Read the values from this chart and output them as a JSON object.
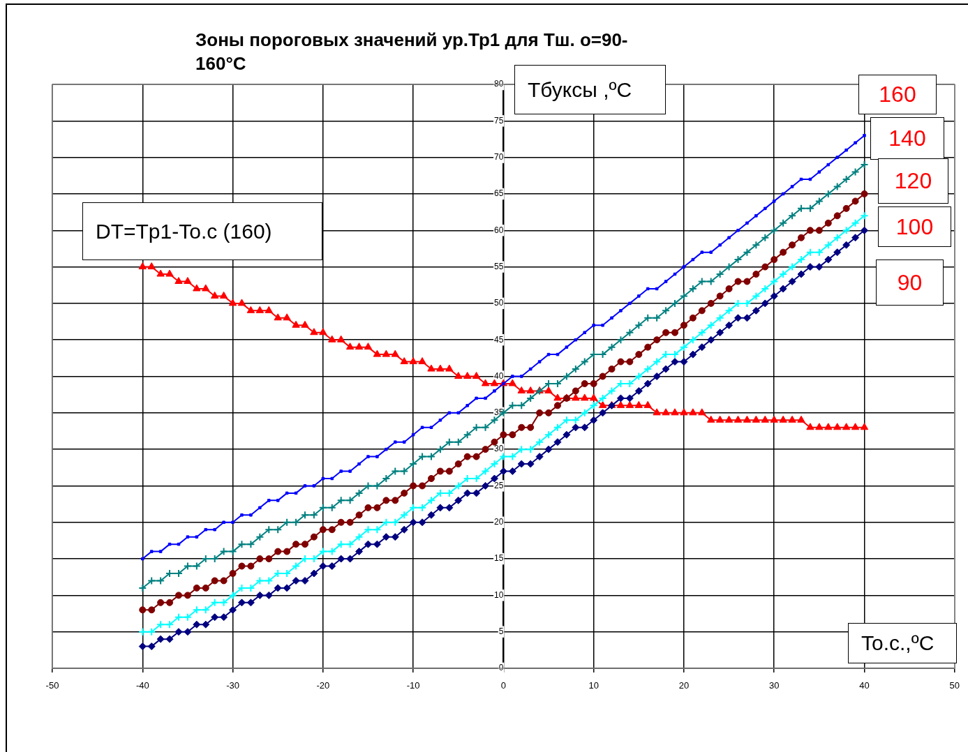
{
  "chart_data": {
    "type": "line",
    "title": "Зоны пороговых значений ур.Тр1 для Тш. о=90-160°С",
    "xlabel": "To.c.,ºC",
    "ylabel": "Тбуксы ,ºС",
    "annotations": [
      "DT=Tp1-To.c (160)"
    ],
    "x": [
      -40,
      -39,
      -38,
      -37,
      -36,
      -35,
      -34,
      -33,
      -32,
      -31,
      -30,
      -29,
      -28,
      -27,
      -26,
      -25,
      -24,
      -23,
      -22,
      -21,
      -20,
      -19,
      -18,
      -17,
      -16,
      -15,
      -14,
      -13,
      -12,
      -11,
      -10,
      -9,
      -8,
      -7,
      -6,
      -5,
      -4,
      -3,
      -2,
      -1,
      0,
      1,
      2,
      3,
      4,
      5,
      6,
      7,
      8,
      9,
      10,
      11,
      12,
      13,
      14,
      15,
      16,
      17,
      18,
      19,
      20,
      21,
      22,
      23,
      24,
      25,
      26,
      27,
      28,
      29,
      30,
      31,
      32,
      33,
      34,
      35,
      36,
      37,
      38,
      39,
      40
    ],
    "series": [
      {
        "name": "160",
        "color": "#0000ff",
        "marker": "square",
        "values": [
          15,
          16,
          16,
          17,
          17,
          18,
          18,
          19,
          19,
          20,
          20,
          21,
          21,
          22,
          23,
          23,
          24,
          24,
          25,
          25,
          26,
          26,
          27,
          27,
          28,
          29,
          29,
          30,
          31,
          31,
          32,
          33,
          33,
          34,
          35,
          35,
          36,
          37,
          37,
          38,
          39,
          40,
          40,
          41,
          42,
          43,
          43,
          44,
          45,
          46,
          47,
          47,
          48,
          49,
          50,
          51,
          52,
          52,
          53,
          54,
          55,
          56,
          57,
          57,
          58,
          59,
          60,
          61,
          62,
          63,
          64,
          65,
          66,
          67,
          67,
          68,
          69,
          70,
          71,
          72,
          73
        ]
      },
      {
        "name": "140",
        "color": "#008080",
        "marker": "cross",
        "values": [
          11,
          12,
          12,
          13,
          13,
          14,
          14,
          15,
          15,
          16,
          16,
          17,
          17,
          18,
          19,
          19,
          20,
          20,
          21,
          21,
          22,
          22,
          23,
          23,
          24,
          25,
          25,
          26,
          27,
          27,
          28,
          29,
          29,
          30,
          31,
          31,
          32,
          33,
          33,
          34,
          35,
          36,
          36,
          37,
          38,
          39,
          39,
          40,
          41,
          42,
          43,
          43,
          44,
          45,
          46,
          47,
          48,
          48,
          49,
          50,
          51,
          52,
          53,
          53,
          54,
          55,
          56,
          57,
          58,
          59,
          60,
          61,
          62,
          63,
          63,
          64,
          65,
          66,
          67,
          68,
          69
        ]
      },
      {
        "name": "120",
        "color": "#800000",
        "marker": "circle",
        "values": [
          8,
          8,
          9,
          9,
          10,
          10,
          11,
          11,
          12,
          12,
          13,
          14,
          14,
          15,
          15,
          16,
          16,
          17,
          17,
          18,
          19,
          19,
          20,
          20,
          21,
          22,
          22,
          23,
          23,
          24,
          25,
          25,
          26,
          27,
          27,
          28,
          29,
          29,
          30,
          31,
          32,
          32,
          33,
          33,
          35,
          35,
          36,
          37,
          38,
          39,
          39,
          40,
          41,
          42,
          42,
          43,
          44,
          45,
          46,
          46,
          47,
          48,
          49,
          50,
          51,
          52,
          53,
          53,
          54,
          55,
          56,
          57,
          58,
          59,
          60,
          60,
          61,
          62,
          63,
          64,
          65
        ]
      },
      {
        "name": "100",
        "color": "#00ffff",
        "marker": "cross",
        "values": [
          5,
          5,
          6,
          6,
          7,
          7,
          8,
          8,
          9,
          9,
          10,
          11,
          11,
          12,
          12,
          13,
          13,
          14,
          15,
          15,
          16,
          16,
          17,
          17,
          18,
          19,
          19,
          20,
          20,
          21,
          22,
          22,
          23,
          24,
          24,
          25,
          26,
          26,
          27,
          28,
          29,
          29,
          30,
          30,
          31,
          32,
          33,
          34,
          34,
          35,
          36,
          37,
          38,
          39,
          39,
          40,
          41,
          42,
          43,
          43,
          44,
          45,
          46,
          47,
          48,
          49,
          50,
          50,
          51,
          52,
          53,
          54,
          55,
          56,
          57,
          57,
          58,
          59,
          60,
          61,
          62
        ]
      },
      {
        "name": "90",
        "color": "#000080",
        "marker": "diamond",
        "values": [
          3,
          3,
          4,
          4,
          5,
          5,
          6,
          6,
          7,
          7,
          8,
          9,
          9,
          10,
          10,
          11,
          11,
          12,
          12,
          13,
          14,
          14,
          15,
          15,
          16,
          17,
          17,
          18,
          18,
          19,
          20,
          20,
          21,
          22,
          22,
          23,
          24,
          24,
          25,
          26,
          27,
          27,
          28,
          28,
          29,
          30,
          31,
          32,
          33,
          33,
          34,
          35,
          36,
          37,
          37,
          38,
          39,
          40,
          41,
          42,
          42,
          43,
          44,
          45,
          46,
          47,
          48,
          48,
          49,
          50,
          51,
          52,
          53,
          54,
          55,
          55,
          56,
          57,
          58,
          59,
          60
        ]
      },
      {
        "color": "#ff0000",
        "marker": "triangle",
        "values": [
          55,
          55,
          54,
          54,
          53,
          53,
          52,
          52,
          51,
          51,
          50,
          50,
          49,
          49,
          49,
          48,
          48,
          47,
          47,
          46,
          46,
          45,
          45,
          44,
          44,
          44,
          43,
          43,
          43,
          42,
          42,
          42,
          41,
          41,
          41,
          40,
          40,
          40,
          39,
          39,
          39,
          39,
          38,
          38,
          38,
          38,
          37,
          37,
          37,
          37,
          37,
          36,
          36,
          36,
          36,
          36,
          36,
          35,
          35,
          35,
          35,
          35,
          35,
          34,
          34,
          34,
          34,
          34,
          34,
          34,
          34,
          34,
          34,
          34,
          33,
          33,
          33,
          33,
          33,
          33,
          33
        ]
      }
    ],
    "xlim": [
      -50,
      50
    ],
    "xticks": [
      -50,
      -40,
      -30,
      -20,
      -10,
      0,
      10,
      20,
      30,
      40,
      50
    ],
    "ylim": [
      0,
      80
    ],
    "yticks": [
      0,
      5,
      10,
      15,
      20,
      25,
      30,
      35,
      40,
      45,
      50,
      55,
      60,
      65,
      70,
      75,
      80
    ],
    "grid": true,
    "legend": false
  }
}
